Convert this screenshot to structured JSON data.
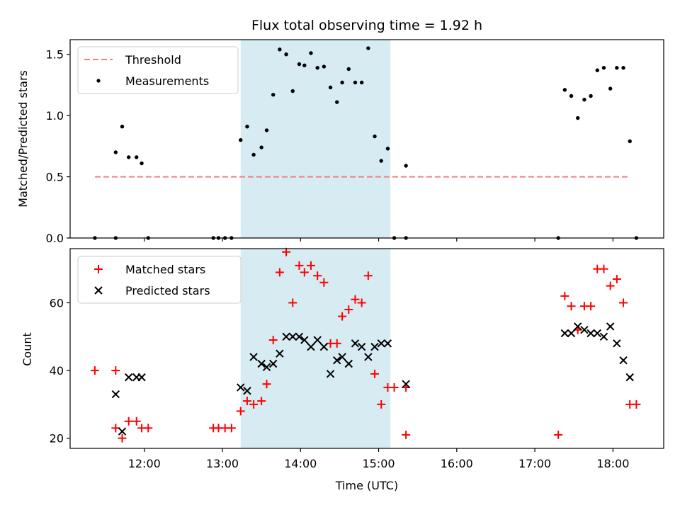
{
  "figure": {
    "title": "Flux total observing time = 1.92 h"
  },
  "colors": {
    "threshold": "#f08080",
    "measurement": "#000000",
    "matched": "#ff0000",
    "predicted": "#000000",
    "highlight": "#add8e6"
  },
  "chart_data": [
    {
      "type": "scatter",
      "title": "Flux total observing time = 1.92 h",
      "ylabel": "Matched/Predicted stars",
      "xlabel": "",
      "ylim": [
        0,
        1.62
      ],
      "xlim": [
        "11:03",
        "18:39"
      ],
      "yticks": [
        0.0,
        0.5,
        1.0,
        1.5
      ],
      "ytick_labels": [
        "0.0",
        "0.5",
        "1.0",
        "1.5"
      ],
      "legend_position": "upper-left",
      "highlight_span": [
        "13:14",
        "15:09"
      ],
      "threshold": {
        "name": "Threshold",
        "x": [
          "11:22",
          "18:13"
        ],
        "y": 0.5
      },
      "series": [
        {
          "name": "Measurements",
          "marker": "dot",
          "points": [
            [
              "11:22",
              0.0
            ],
            [
              "11:38",
              0.0
            ],
            [
              "11:38",
              0.7
            ],
            [
              "11:43",
              0.91
            ],
            [
              "11:48",
              0.66
            ],
            [
              "11:54",
              0.66
            ],
            [
              "11:58",
              0.61
            ],
            [
              "12:03",
              0.0
            ],
            [
              "12:53",
              0.0
            ],
            [
              "12:57",
              0.0
            ],
            [
              "13:02",
              0.0
            ],
            [
              "13:07",
              0.0
            ],
            [
              "13:14",
              0.8
            ],
            [
              "13:19",
              0.91
            ],
            [
              "13:24",
              0.68
            ],
            [
              "13:30",
              0.74
            ],
            [
              "13:34",
              0.88
            ],
            [
              "13:39",
              1.17
            ],
            [
              "13:44",
              1.54
            ],
            [
              "13:49",
              1.5
            ],
            [
              "13:54",
              1.2
            ],
            [
              "13:59",
              1.42
            ],
            [
              "14:03",
              1.41
            ],
            [
              "14:08",
              1.51
            ],
            [
              "14:13",
              1.39
            ],
            [
              "14:18",
              1.4
            ],
            [
              "14:23",
              1.23
            ],
            [
              "14:28",
              1.11
            ],
            [
              "14:32",
              1.27
            ],
            [
              "14:37",
              1.38
            ],
            [
              "14:42",
              1.27
            ],
            [
              "14:47",
              1.27
            ],
            [
              "14:52",
              1.55
            ],
            [
              "14:57",
              0.83
            ],
            [
              "15:02",
              0.63
            ],
            [
              "15:07",
              0.73
            ],
            [
              "15:12",
              0.0
            ],
            [
              "15:21",
              0.0
            ],
            [
              "15:21",
              0.59
            ],
            [
              "17:18",
              0.0
            ],
            [
              "17:23",
              1.21
            ],
            [
              "17:28",
              1.16
            ],
            [
              "17:33",
              0.98
            ],
            [
              "17:38",
              1.13
            ],
            [
              "17:43",
              1.16
            ],
            [
              "17:48",
              1.37
            ],
            [
              "17:53",
              1.39
            ],
            [
              "17:58",
              1.22
            ],
            [
              "18:03",
              1.39
            ],
            [
              "18:08",
              1.39
            ],
            [
              "18:13",
              0.79
            ],
            [
              "18:18",
              0.0
            ]
          ]
        }
      ]
    },
    {
      "type": "scatter",
      "title": "",
      "ylabel": "Count",
      "xlabel": "Time (UTC)",
      "ylim": [
        17,
        76
      ],
      "xlim": [
        "11:03",
        "18:39"
      ],
      "yticks": [
        20,
        40,
        60
      ],
      "ytick_labels": [
        "20",
        "40",
        "60"
      ],
      "xticks": [
        "12:00",
        "13:00",
        "14:00",
        "15:00",
        "16:00",
        "17:00",
        "18:00"
      ],
      "xtick_labels": [
        "12:00",
        "13:00",
        "14:00",
        "15:00",
        "16:00",
        "17:00",
        "18:00"
      ],
      "legend_position": "upper-left",
      "highlight_span": [
        "13:14",
        "15:09"
      ],
      "series": [
        {
          "name": "Matched stars",
          "marker": "plus",
          "points": [
            [
              "11:22",
              40
            ],
            [
              "11:38",
              40
            ],
            [
              "11:38",
              23
            ],
            [
              "11:43",
              20
            ],
            [
              "11:48",
              25
            ],
            [
              "11:54",
              25
            ],
            [
              "11:58",
              23
            ],
            [
              "12:03",
              23
            ],
            [
              "12:53",
              23
            ],
            [
              "12:57",
              23
            ],
            [
              "13:02",
              23
            ],
            [
              "13:07",
              23
            ],
            [
              "13:14",
              28
            ],
            [
              "13:19",
              31
            ],
            [
              "13:24",
              30
            ],
            [
              "13:30",
              31
            ],
            [
              "13:34",
              36
            ],
            [
              "13:39",
              49
            ],
            [
              "13:44",
              69
            ],
            [
              "13:49",
              75
            ],
            [
              "13:54",
              60
            ],
            [
              "13:59",
              71
            ],
            [
              "14:03",
              69
            ],
            [
              "14:08",
              71
            ],
            [
              "14:13",
              68
            ],
            [
              "14:18",
              66
            ],
            [
              "14:23",
              48
            ],
            [
              "14:28",
              48
            ],
            [
              "14:32",
              56
            ],
            [
              "14:37",
              58
            ],
            [
              "14:42",
              61
            ],
            [
              "14:47",
              60
            ],
            [
              "14:52",
              68
            ],
            [
              "14:57",
              39
            ],
            [
              "15:02",
              30
            ],
            [
              "15:07",
              35
            ],
            [
              "15:12",
              35
            ],
            [
              "15:21",
              35
            ],
            [
              "15:21",
              21
            ],
            [
              "17:18",
              21
            ],
            [
              "17:23",
              62
            ],
            [
              "17:28",
              59
            ],
            [
              "17:33",
              52
            ],
            [
              "17:38",
              59
            ],
            [
              "17:43",
              59
            ],
            [
              "17:48",
              70
            ],
            [
              "17:53",
              70
            ],
            [
              "17:58",
              65
            ],
            [
              "18:03",
              67
            ],
            [
              "18:08",
              60
            ],
            [
              "18:13",
              30
            ],
            [
              "18:18",
              30
            ]
          ]
        },
        {
          "name": "Predicted stars",
          "marker": "x",
          "points": [
            [
              "11:38",
              33
            ],
            [
              "11:43",
              22
            ],
            [
              "11:48",
              38
            ],
            [
              "11:54",
              38
            ],
            [
              "11:58",
              38
            ],
            [
              "13:14",
              35
            ],
            [
              "13:19",
              34
            ],
            [
              "13:24",
              44
            ],
            [
              "13:30",
              42
            ],
            [
              "13:34",
              41
            ],
            [
              "13:39",
              42
            ],
            [
              "13:44",
              45
            ],
            [
              "13:49",
              50
            ],
            [
              "13:54",
              50
            ],
            [
              "13:59",
              50
            ],
            [
              "14:03",
              49
            ],
            [
              "14:08",
              47
            ],
            [
              "14:13",
              49
            ],
            [
              "14:18",
              47
            ],
            [
              "14:23",
              39
            ],
            [
              "14:28",
              43
            ],
            [
              "14:32",
              44
            ],
            [
              "14:37",
              42
            ],
            [
              "14:42",
              48
            ],
            [
              "14:47",
              47
            ],
            [
              "14:52",
              44
            ],
            [
              "14:57",
              47
            ],
            [
              "15:02",
              48
            ],
            [
              "15:07",
              48
            ],
            [
              "15:21",
              36
            ],
            [
              "17:23",
              51
            ],
            [
              "17:28",
              51
            ],
            [
              "17:33",
              53
            ],
            [
              "17:38",
              52
            ],
            [
              "17:43",
              51
            ],
            [
              "17:48",
              51
            ],
            [
              "17:53",
              50
            ],
            [
              "17:58",
              53
            ],
            [
              "18:03",
              48
            ],
            [
              "18:08",
              43
            ],
            [
              "18:13",
              38
            ]
          ]
        }
      ]
    }
  ]
}
